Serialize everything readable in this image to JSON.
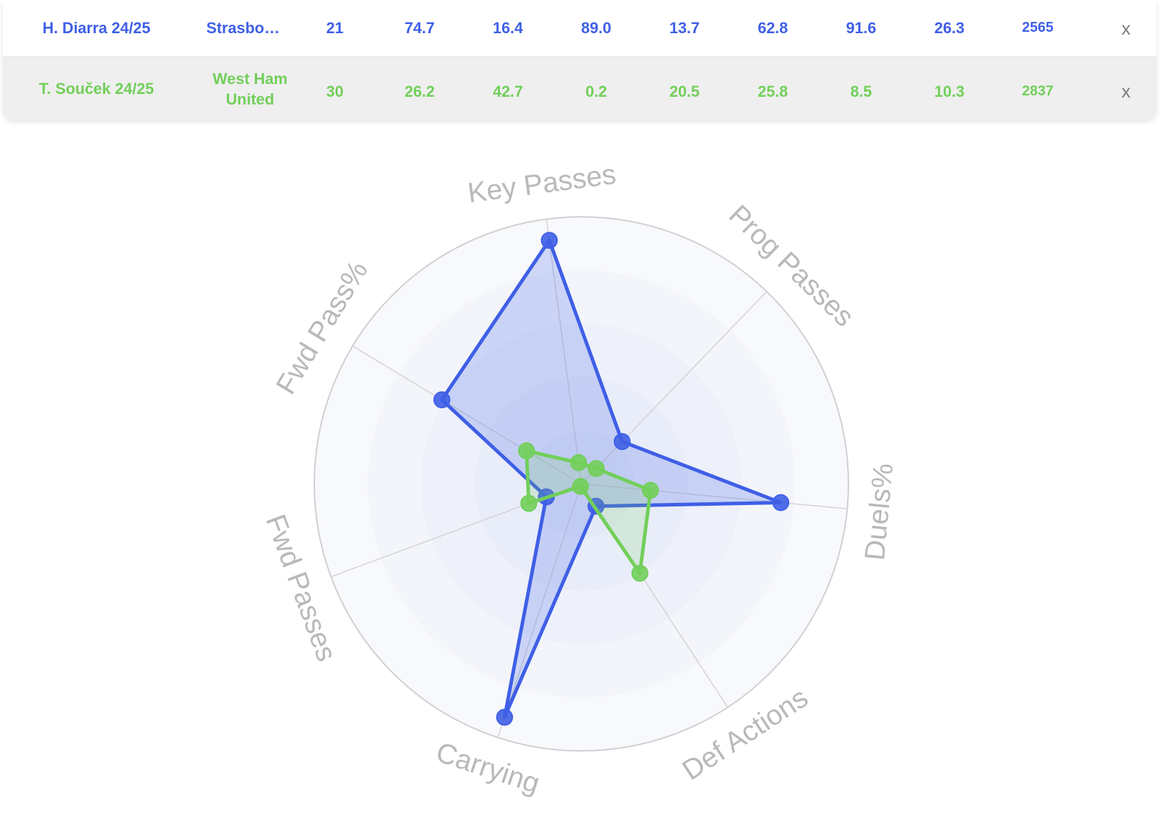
{
  "players": [
    {
      "name": "H. Diarra 24/25",
      "team": "Strasbo…",
      "values": [
        "21",
        "74.7",
        "16.4",
        "89.0",
        "13.7",
        "62.8",
        "91.6",
        "26.3",
        "2565"
      ],
      "remove_label": "x",
      "color": "#3f5fe6"
    },
    {
      "name": "T. Souček 24/25",
      "team": "West Ham United",
      "values": [
        "30",
        "26.2",
        "42.7",
        "0.2",
        "20.5",
        "25.8",
        "8.5",
        "10.3",
        "2837"
      ],
      "remove_label": "x",
      "color": "#72cf5a"
    }
  ],
  "chart_data": {
    "type": "radar",
    "axes": [
      "Key Passes",
      "Prog Passes",
      "Duels%",
      "Def Actions",
      "Carrying",
      "Fwd Passes",
      "Fwd Pass%"
    ],
    "range": [
      0,
      100
    ],
    "rings": 5,
    "series": [
      {
        "name": "H. Diarra 24/25",
        "color": "#3f5fe6",
        "values": [
          92,
          22,
          75,
          10,
          92,
          14,
          61
        ]
      },
      {
        "name": "T. Souček 24/25",
        "color": "#72cf5a",
        "values": [
          8,
          8,
          26,
          40,
          1,
          21,
          24
        ]
      }
    ]
  }
}
